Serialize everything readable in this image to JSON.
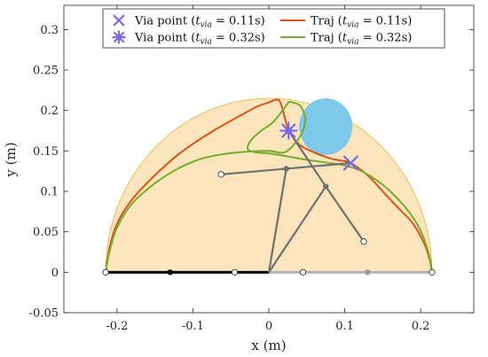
{
  "chart_data": {
    "type": "line",
    "xlabel": "x (m)",
    "ylabel": "y (m)",
    "xlim": [
      -0.27,
      0.27
    ],
    "ylim": [
      -0.05,
      0.33
    ],
    "x_ticks": [
      -0.2,
      -0.1,
      0,
      0.1,
      0.2
    ],
    "y_ticks": [
      -0.05,
      0,
      0.05,
      0.1,
      0.15,
      0.2,
      0.25,
      0.3
    ],
    "x_tick_labels": [
      "-0.2",
      "-0.1",
      "0",
      "0.1",
      "0.2"
    ],
    "y_tick_labels": [
      "-0.05",
      "0",
      "0.05",
      "0.1",
      "0.15",
      "0.2",
      "0.25",
      "0.3"
    ],
    "grid": false,
    "legend_placement": "top-center",
    "legend": [
      {
        "kind": "marker",
        "marker": "x",
        "color": "#7b68ee",
        "label": "Via point",
        "t_value": "0.11s"
      },
      {
        "kind": "line",
        "color": "#d95319",
        "label": "Traj",
        "t_value": "0.11s"
      },
      {
        "kind": "marker",
        "marker": "asterisk",
        "color": "#7b68ee",
        "label": "Via point",
        "t_value": "0.32s"
      },
      {
        "kind": "line",
        "color": "#77ac30",
        "label": "Traj",
        "t_value": "0.32s"
      }
    ],
    "workspace": {
      "center": [
        0,
        0
      ],
      "radius": 0.215,
      "fill": "#fae5bd",
      "stroke": "#f0b040"
    },
    "obstacle": {
      "center": [
        0.075,
        0.18
      ],
      "radius": 0.035,
      "fill": "#7ec8ea"
    },
    "via_points": [
      {
        "marker": "x",
        "color": "#7b68ee",
        "x": 0.108,
        "y": 0.135
      },
      {
        "marker": "asterisk",
        "color": "#7b68ee",
        "x": 0.026,
        "y": 0.175
      }
    ],
    "series": [
      {
        "name": "Traj (t_via = 0.11s)",
        "color": "#d95319",
        "x": [
          -0.215,
          -0.21,
          -0.2,
          -0.18,
          -0.15,
          -0.12,
          -0.09,
          -0.06,
          -0.035,
          -0.015,
          0.0,
          0.008,
          0.013,
          0.016,
          0.02,
          0.026,
          0.04,
          0.06,
          0.08,
          0.095,
          0.108,
          0.13,
          0.15,
          0.17,
          0.19,
          0.205,
          0.212,
          0.215
        ],
        "y": [
          0.0,
          0.03,
          0.06,
          0.09,
          0.12,
          0.145,
          0.165,
          0.182,
          0.195,
          0.205,
          0.21,
          0.213,
          0.213,
          0.208,
          0.195,
          0.176,
          0.158,
          0.148,
          0.141,
          0.138,
          0.135,
          0.12,
          0.1,
          0.08,
          0.06,
          0.035,
          0.015,
          0.0
        ]
      },
      {
        "name": "Traj (t_via = 0.32s)",
        "color": "#77ac30",
        "x": [
          -0.215,
          -0.21,
          -0.2,
          -0.18,
          -0.15,
          -0.12,
          -0.09,
          -0.06,
          -0.03,
          0.0,
          0.02,
          0.035,
          0.045,
          0.048,
          0.045,
          0.04,
          0.03,
          0.026,
          0.018,
          0.005,
          -0.01,
          -0.022,
          -0.028,
          -0.025,
          -0.015,
          0.0,
          0.02,
          0.05,
          0.08,
          0.1,
          0.12,
          0.14,
          0.16,
          0.18,
          0.195,
          0.205,
          0.212,
          0.215
        ],
        "y": [
          0.0,
          0.025,
          0.055,
          0.085,
          0.11,
          0.128,
          0.14,
          0.146,
          0.149,
          0.15,
          0.148,
          0.16,
          0.175,
          0.19,
          0.2,
          0.207,
          0.21,
          0.21,
          0.2,
          0.185,
          0.175,
          0.165,
          0.155,
          0.15,
          0.148,
          0.147,
          0.144,
          0.139,
          0.135,
          0.132,
          0.126,
          0.115,
          0.1,
          0.08,
          0.06,
          0.04,
          0.018,
          0.0
        ]
      }
    ],
    "mechanism": {
      "gray_links": [
        {
          "points": [
            [
              0.0,
              0.0
            ],
            [
              0.023,
              0.128
            ],
            [
              -0.063,
              0.121
            ]
          ]
        },
        {
          "points": [
            [
              0.0,
              0.0
            ],
            [
              0.075,
              0.106
            ],
            [
              0.125,
              0.038
            ]
          ]
        },
        {
          "points": [
            [
              0.023,
              0.128
            ],
            [
              0.108,
              0.135
            ]
          ]
        },
        {
          "points": [
            [
              0.026,
              0.175
            ],
            [
              0.075,
              0.106
            ]
          ]
        }
      ],
      "gray_joints": [
        [
          0.023,
          0.128
        ],
        [
          0.075,
          0.106
        ]
      ],
      "white_joints": [
        [
          -0.063,
          0.121
        ],
        [
          0.125,
          0.038
        ],
        [
          0.026,
          0.175
        ]
      ],
      "base_black": {
        "from": [
          -0.215,
          0.0
        ],
        "to": [
          0.0,
          0.0
        ],
        "joints_white": [
          [
            -0.215,
            0.0
          ],
          [
            -0.045,
            0.0
          ]
        ],
        "joints_black": [
          [
            -0.13,
            0.0
          ]
        ]
      },
      "base_gray": {
        "from": [
          0.0,
          0.0
        ],
        "to": [
          0.215,
          0.0
        ],
        "joints_white": [
          [
            0.045,
            0.0
          ],
          [
            0.215,
            0.0
          ]
        ],
        "joints_gray": [
          [
            0.13,
            0.0
          ]
        ]
      }
    }
  }
}
